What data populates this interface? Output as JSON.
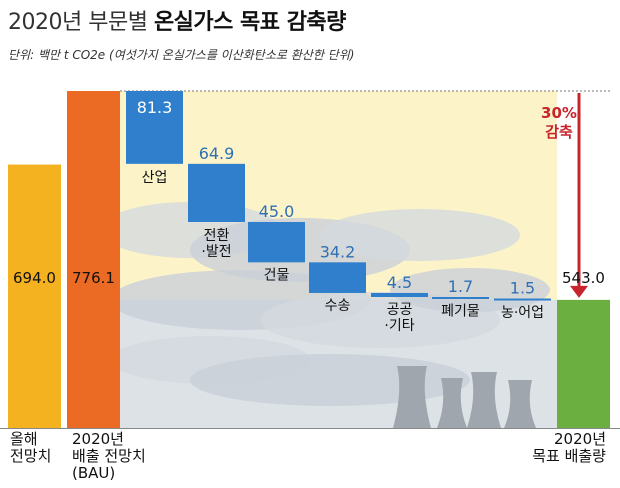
{
  "title": {
    "prefix": "2020년 부문별 ",
    "emphasis": "온실가스 목표 감축량"
  },
  "unit_note": "단위: 백만 t CO2e (여섯가지 온실가스를 이산화탄소로 환산한 단위)",
  "colors": {
    "yellow_bar": "#F4B120",
    "orange_bar": "#EB6A24",
    "green_bar": "#6AAF3F",
    "blue_seg": "#2F7FCC",
    "band": "#FCF4C8",
    "red_arrow": "#C8242C",
    "smog": "#DDE2E7"
  },
  "reduction_label": [
    "30%",
    "감축"
  ],
  "chart_data": {
    "type": "waterfall",
    "totals": [
      {
        "value": 694.0,
        "label": "694.0",
        "caption": [
          "올해",
          "전망치"
        ]
      },
      {
        "value": 776.1,
        "label": "776.1",
        "caption": [
          "2020년",
          "배출 전망치",
          "(BAU)"
        ]
      },
      {
        "value": 543.0,
        "label": "543.0",
        "caption": [
          "2020년",
          "목표 배출량"
        ]
      }
    ],
    "sectors": [
      {
        "value": 81.3,
        "label": "81.3",
        "name": [
          "산업"
        ]
      },
      {
        "value": 64.9,
        "label": "64.9",
        "name": [
          "전환",
          "·발전"
        ]
      },
      {
        "value": 45.0,
        "label": "45.0",
        "name": [
          "건물"
        ]
      },
      {
        "value": 34.2,
        "label": "34.2",
        "name": [
          "수송"
        ]
      },
      {
        "value": 4.5,
        "label": "4.5",
        "name": [
          "공공",
          "·기타"
        ]
      },
      {
        "value": 1.7,
        "label": "1.7",
        "name": [
          "폐기물"
        ]
      },
      {
        "value": 1.5,
        "label": "1.5",
        "name": [
          "농·어업"
        ]
      }
    ]
  }
}
